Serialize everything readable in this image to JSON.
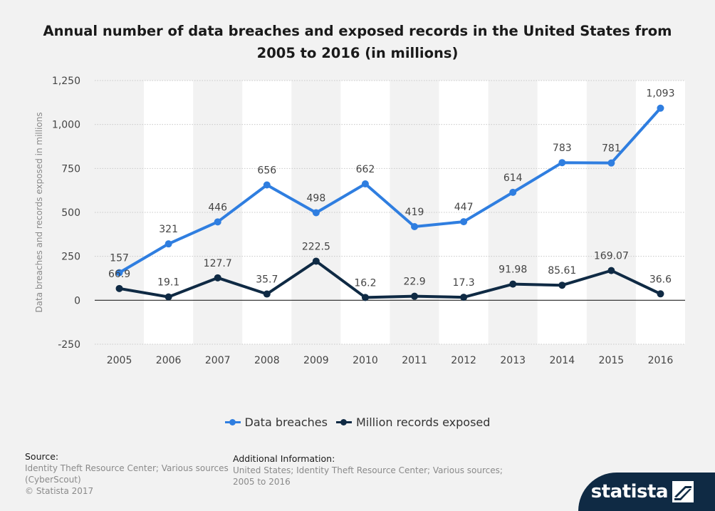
{
  "colors": {
    "breaches": "#2f7ee0",
    "records": "#0f2a44",
    "grid": "#c8c8c8",
    "band": "#ffffff"
  },
  "chart_data": {
    "type": "line",
    "title": "Annual number of data breaches and exposed records in the United States from 2005 to 2016 (in millions)",
    "ylabel": "Data breaches and records exposed in millions",
    "xlabel": "",
    "categories": [
      "2005",
      "2006",
      "2007",
      "2008",
      "2009",
      "2010",
      "2011",
      "2012",
      "2013",
      "2014",
      "2015",
      "2016"
    ],
    "ylim": [
      -250,
      1250
    ],
    "yticks": [
      -250,
      0,
      250,
      500,
      750,
      1000,
      1250
    ],
    "ytick_labels": [
      "-250",
      "0",
      "250",
      "500",
      "750",
      "1,000",
      "1,250"
    ],
    "grid": true,
    "legend_position": "bottom-center",
    "series": [
      {
        "name": "Data breaches",
        "values": [
          157,
          321,
          446,
          656,
          498,
          662,
          419,
          447,
          614,
          783,
          781,
          1093
        ],
        "labels": [
          "157",
          "321",
          "446",
          "656",
          "498",
          "662",
          "419",
          "447",
          "614",
          "783",
          "781",
          "1,093"
        ]
      },
      {
        "name": "Million records exposed",
        "values": [
          66.9,
          19.1,
          127.7,
          35.7,
          222.5,
          16.2,
          22.9,
          17.3,
          91.98,
          85.61,
          169.07,
          36.6
        ],
        "labels": [
          "66.9",
          "19.1",
          "127.7",
          "35.7",
          "222.5",
          "16.2",
          "22.9",
          "17.3",
          "91.98",
          "85.61",
          "169.07",
          "36.6"
        ]
      }
    ]
  },
  "footer": {
    "source_head": "Source:",
    "source_lines": [
      "Identity Theft Resource Center; Various sources",
      "(CyberScout)",
      "© Statista 2017"
    ],
    "addinfo_head": "Additional Information:",
    "addinfo_lines": [
      "United States; Identity Theft Resource Center; Various sources;",
      "2005 to 2016"
    ]
  },
  "brand": {
    "name": "statista",
    "icon": "statista-logo-icon"
  }
}
